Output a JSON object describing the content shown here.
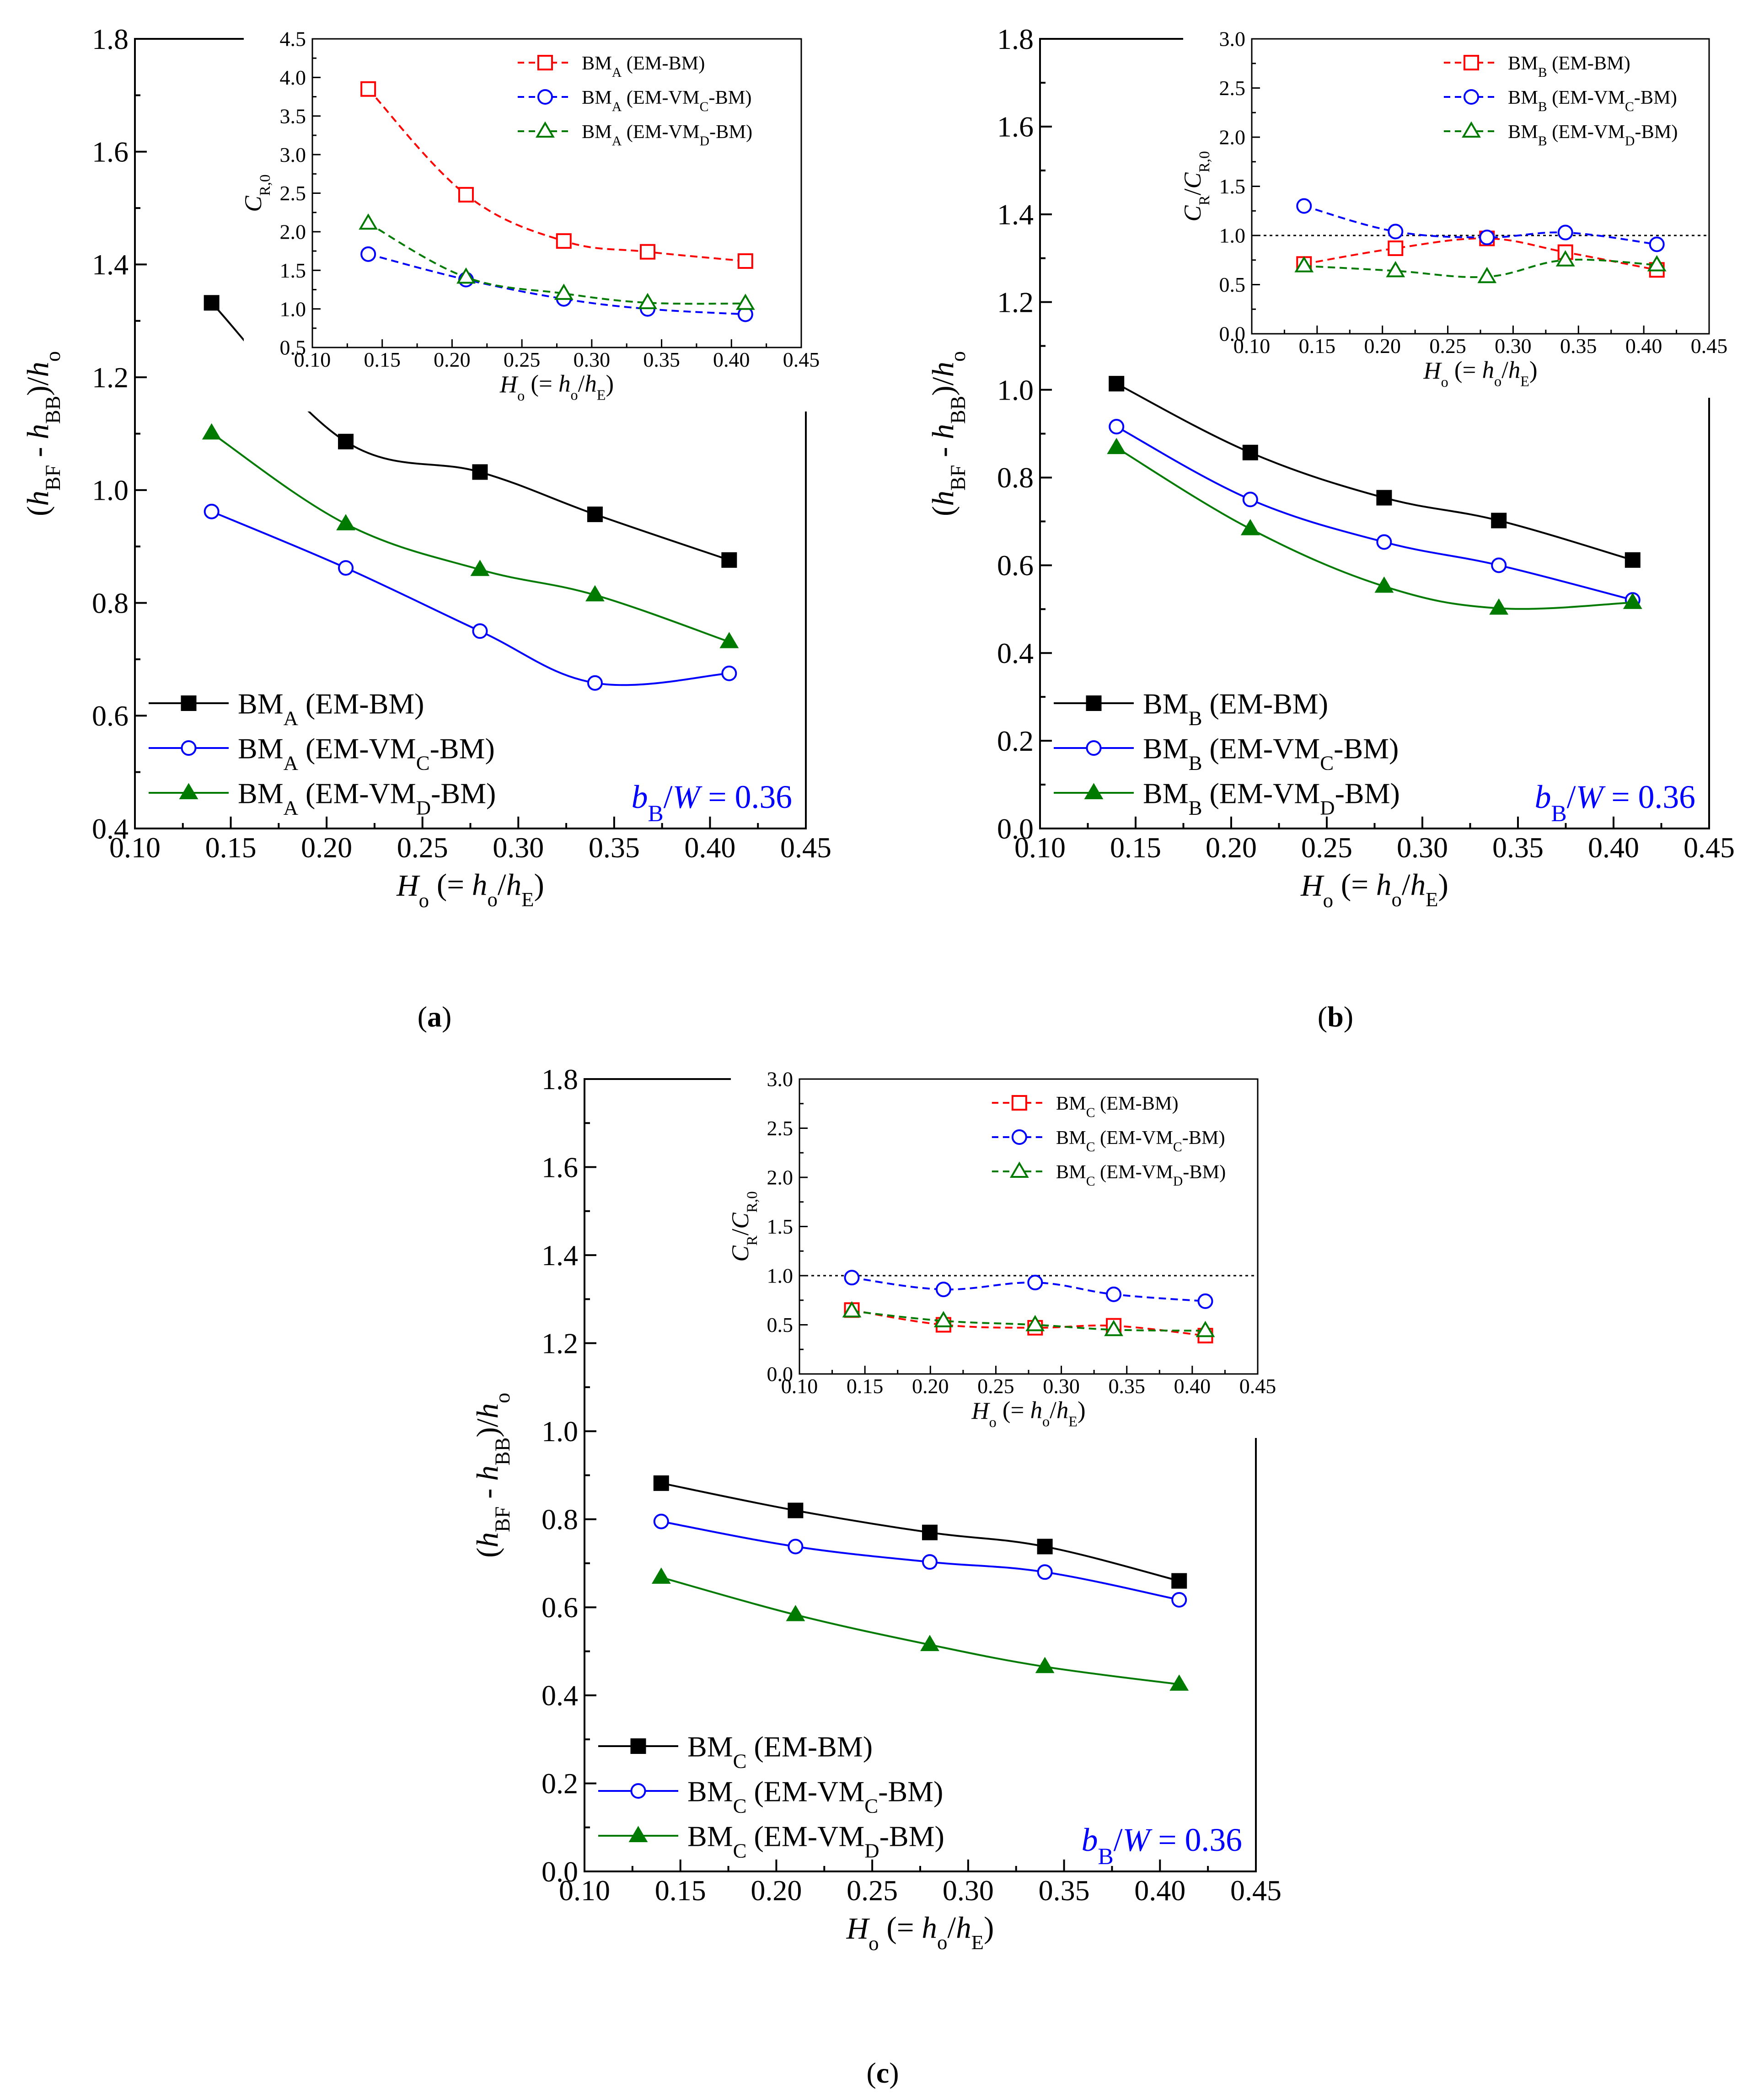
{
  "figure": {
    "panel_labels": [
      "a",
      "b",
      "c"
    ],
    "colors": {
      "black": "#000000",
      "blue": "#0000ff",
      "green": "#007a00",
      "red": "#ff0000",
      "annotation": "#0000ff"
    }
  },
  "chart_data": [
    {
      "id": "a-main",
      "type": "line",
      "panel": "a",
      "xlabel": {
        "main": "H",
        "sub": "o",
        "rest": " (= h",
        "sub2": "o",
        "rest2": "/h",
        "sub3": "E",
        "end": ")"
      },
      "ylabel": {
        "a": "(h",
        "s1": "BF",
        "b": " - h",
        "s2": "BB",
        "c": ")/h",
        "s3": "o"
      },
      "xlim": [
        0.1,
        0.45
      ],
      "ylim": [
        0.4,
        1.8
      ],
      "xticks": [
        "0.10",
        "0.15",
        "0.20",
        "0.25",
        "0.30",
        "0.35",
        "0.40",
        "0.45"
      ],
      "yticks": [
        "0.4",
        "0.6",
        "0.8",
        "1.0",
        "1.2",
        "1.4",
        "1.6",
        "1.8"
      ],
      "x": [
        0.14,
        0.21,
        0.28,
        0.34,
        0.41
      ],
      "series": [
        {
          "name": "BM_A (EM-BM)",
          "base": "BM",
          "sub": "A",
          "tail": " (EM-BM)",
          "tailsub": "",
          "tailend": "",
          "values": [
            1.332,
            1.086,
            1.032,
            0.957,
            0.876
          ],
          "color": "#000000",
          "marker": "square-filled",
          "line": "solid"
        },
        {
          "name": "BM_A (EM-VM_C-BM)",
          "base": "BM",
          "sub": "A",
          "tail": " (EM-VM",
          "tailsub": "C",
          "tailend": "-BM)",
          "values": [
            0.962,
            0.862,
            0.75,
            0.658,
            0.675
          ],
          "color": "#0000ff",
          "marker": "circle-open",
          "line": "solid"
        },
        {
          "name": "BM_A (EM-VM_D-BM)",
          "base": "BM",
          "sub": "A",
          "tail": " (EM-VM",
          "tailsub": "D",
          "tailend": "-BM)",
          "values": [
            1.101,
            0.94,
            0.859,
            0.814,
            0.731
          ],
          "color": "#007a00",
          "marker": "triangle-filled",
          "line": "solid"
        }
      ],
      "annotation": {
        "a": "b",
        "s": "B",
        "b": "/W = 0.36"
      },
      "legend": "bottom-left"
    },
    {
      "id": "a-inset",
      "type": "line",
      "panel": "a",
      "xlabel": {
        "main": "H",
        "sub": "o",
        "rest": " (= h",
        "sub2": "o",
        "rest2": "/h",
        "sub3": "E",
        "end": ")"
      },
      "ylabel": {
        "a": "C",
        "s1": "R,0"
      },
      "xlim": [
        0.1,
        0.45
      ],
      "ylim": [
        0.5,
        4.5
      ],
      "xticks": [
        "0.10",
        "0.15",
        "0.20",
        "0.25",
        "0.30",
        "0.35",
        "0.40",
        "0.45"
      ],
      "yticks": [
        "0.5",
        "1.0",
        "1.5",
        "2.0",
        "2.5",
        "3.0",
        "3.5",
        "4.0",
        "4.5"
      ],
      "x": [
        0.14,
        0.21,
        0.28,
        0.34,
        0.41
      ],
      "series": [
        {
          "name": "BM_A (EM-BM)",
          "base": "BM",
          "sub": "A",
          "tail": " (EM-BM)",
          "tailsub": "",
          "tailend": "",
          "values": [
            3.85,
            2.48,
            1.88,
            1.74,
            1.62
          ],
          "color": "#ff0000",
          "marker": "square-open",
          "line": "dashed"
        },
        {
          "name": "BM_A (EM-VM_C-BM)",
          "base": "BM",
          "sub": "A",
          "tail": " (EM-VM",
          "tailsub": "C",
          "tailend": "-BM)",
          "values": [
            1.71,
            1.38,
            1.13,
            1.0,
            0.93
          ],
          "color": "#0000ff",
          "marker": "circle-open",
          "line": "dashed"
        },
        {
          "name": "BM_A (EM-VM_D-BM)",
          "base": "BM",
          "sub": "A",
          "tail": " (EM-VM",
          "tailsub": "D",
          "tailend": "-BM)",
          "values": [
            2.11,
            1.41,
            1.2,
            1.08,
            1.07
          ],
          "color": "#007a00",
          "marker": "triangle-open",
          "line": "dashed"
        }
      ],
      "legend": "top-right"
    },
    {
      "id": "b-main",
      "type": "line",
      "panel": "b",
      "xlabel": {
        "main": "H",
        "sub": "o",
        "rest": " (= h",
        "sub2": "o",
        "rest2": "/h",
        "sub3": "E",
        "end": ")"
      },
      "ylabel": {
        "a": "(h",
        "s1": "BF",
        "b": " - h",
        "s2": "BB",
        "c": ")/h",
        "s3": "o"
      },
      "xlim": [
        0.1,
        0.45
      ],
      "ylim": [
        0.0,
        1.8
      ],
      "xticks": [
        "0.10",
        "0.15",
        "0.20",
        "0.25",
        "0.30",
        "0.35",
        "0.40",
        "0.45"
      ],
      "yticks": [
        "0.0",
        "0.2",
        "0.4",
        "0.6",
        "0.8",
        "1.0",
        "1.2",
        "1.4",
        "1.6",
        "1.8"
      ],
      "x": [
        0.14,
        0.21,
        0.28,
        0.34,
        0.41
      ],
      "series": [
        {
          "name": "BM_B (EM-BM)",
          "base": "BM",
          "sub": "B",
          "tail": " (EM-BM)",
          "tailsub": "",
          "tailend": "",
          "values": [
            1.014,
            0.857,
            0.754,
            0.702,
            0.612
          ],
          "color": "#000000",
          "marker": "square-filled",
          "line": "solid"
        },
        {
          "name": "BM_B (EM-VM_C-BM)",
          "base": "BM",
          "sub": "B",
          "tail": " (EM-VM",
          "tailsub": "C",
          "tailend": "-BM)",
          "values": [
            0.916,
            0.75,
            0.653,
            0.6,
            0.521
          ],
          "color": "#0000ff",
          "marker": "circle-open",
          "line": "solid"
        },
        {
          "name": "BM_B (EM-VM_D-BM)",
          "base": "BM",
          "sub": "B",
          "tail": " (EM-VM",
          "tailsub": "D",
          "tailend": "-BM)",
          "values": [
            0.868,
            0.683,
            0.552,
            0.502,
            0.515
          ],
          "color": "#007a00",
          "marker": "triangle-filled",
          "line": "solid"
        }
      ],
      "annotation": {
        "a": "b",
        "s": "B",
        "b": "/W = 0.36"
      },
      "legend": "bottom-left"
    },
    {
      "id": "b-inset",
      "type": "line",
      "panel": "b",
      "xlabel": {
        "main": "H",
        "sub": "o",
        "rest": " (= h",
        "sub2": "o",
        "rest2": "/h",
        "sub3": "E",
        "end": ")"
      },
      "ylabel": {
        "a": "C",
        "s1": "R",
        "b": "/C",
        "s2": "R,0"
      },
      "xlim": [
        0.1,
        0.45
      ],
      "ylim": [
        0.0,
        3.0
      ],
      "xticks": [
        "0.10",
        "0.15",
        "0.20",
        "0.25",
        "0.30",
        "0.35",
        "0.40",
        "0.45"
      ],
      "yticks": [
        "0.0",
        "0.5",
        "1.0",
        "1.5",
        "2.0",
        "2.5",
        "3.0"
      ],
      "reference_line": 1.0,
      "x": [
        0.14,
        0.21,
        0.28,
        0.34,
        0.41
      ],
      "series": [
        {
          "name": "BM_B (EM-BM)",
          "base": "BM",
          "sub": "B",
          "tail": " (EM-BM)",
          "tailsub": "",
          "tailend": "",
          "values": [
            0.71,
            0.87,
            0.97,
            0.83,
            0.65
          ],
          "color": "#ff0000",
          "marker": "square-open",
          "line": "dashed"
        },
        {
          "name": "BM_B (EM-VM_C-BM)",
          "base": "BM",
          "sub": "B",
          "tail": " (EM-VM",
          "tailsub": "C",
          "tailend": "-BM)",
          "values": [
            1.3,
            1.04,
            0.98,
            1.03,
            0.91
          ],
          "color": "#0000ff",
          "marker": "circle-open",
          "line": "dashed"
        },
        {
          "name": "BM_B (EM-VM_D-BM)",
          "base": "BM",
          "sub": "B",
          "tail": " (EM-VM",
          "tailsub": "D",
          "tailend": "-BM)",
          "values": [
            0.69,
            0.64,
            0.58,
            0.75,
            0.7
          ],
          "color": "#007a00",
          "marker": "triangle-open",
          "line": "dashed"
        }
      ],
      "legend": "top-right"
    },
    {
      "id": "c-main",
      "type": "line",
      "panel": "c",
      "xlabel": {
        "main": "H",
        "sub": "o",
        "rest": " (= h",
        "sub2": "o",
        "rest2": "/h",
        "sub3": "E",
        "end": ")"
      },
      "ylabel": {
        "a": "(h",
        "s1": "BF",
        "b": " - h",
        "s2": "BB",
        "c": ")/h",
        "s3": "o"
      },
      "xlim": [
        0.1,
        0.45
      ],
      "ylim": [
        0.0,
        1.8
      ],
      "xticks": [
        "0.10",
        "0.15",
        "0.20",
        "0.25",
        "0.30",
        "0.35",
        "0.40",
        "0.45"
      ],
      "yticks": [
        "0.0",
        "0.2",
        "0.4",
        "0.6",
        "0.8",
        "1.0",
        "1.2",
        "1.4",
        "1.6",
        "1.8"
      ],
      "x": [
        0.14,
        0.21,
        0.28,
        0.34,
        0.41
      ],
      "series": [
        {
          "name": "BM_C (EM-BM)",
          "base": "BM",
          "sub": "C",
          "tail": " (EM-BM)",
          "tailsub": "",
          "tailend": "",
          "values": [
            0.882,
            0.82,
            0.77,
            0.738,
            0.66
          ],
          "color": "#000000",
          "marker": "square-filled",
          "line": "solid"
        },
        {
          "name": "BM_C (EM-VM_C-BM)",
          "base": "BM",
          "sub": "C",
          "tail": " (EM-VM",
          "tailsub": "C",
          "tailend": "-BM)",
          "values": [
            0.795,
            0.738,
            0.703,
            0.68,
            0.617
          ],
          "color": "#0000ff",
          "marker": "circle-open",
          "line": "solid"
        },
        {
          "name": "BM_C (EM-VM_D-BM)",
          "base": "BM",
          "sub": "C",
          "tail": " (EM-VM",
          "tailsub": "D",
          "tailend": "-BM)",
          "values": [
            0.668,
            0.583,
            0.515,
            0.465,
            0.425
          ],
          "color": "#007a00",
          "marker": "triangle-filled",
          "line": "solid"
        }
      ],
      "annotation": {
        "a": "b",
        "s": "B",
        "b": "/W = 0.36"
      },
      "legend": "bottom-left"
    },
    {
      "id": "c-inset",
      "type": "line",
      "panel": "c",
      "xlabel": {
        "main": "H",
        "sub": "o",
        "rest": " (= h",
        "sub2": "o",
        "rest2": "/h",
        "sub3": "E",
        "end": ")"
      },
      "ylabel": {
        "a": "C",
        "s1": "R",
        "b": "/C",
        "s2": "R,0"
      },
      "xlim": [
        0.1,
        0.45
      ],
      "ylim": [
        0.0,
        3.0
      ],
      "xticks": [
        "0.10",
        "0.15",
        "0.20",
        "0.25",
        "0.30",
        "0.35",
        "0.40",
        "0.45"
      ],
      "yticks": [
        "0.0",
        "0.5",
        "1.0",
        "1.5",
        "2.0",
        "2.5",
        "3.0"
      ],
      "reference_line": 1.0,
      "x": [
        0.14,
        0.21,
        0.28,
        0.34,
        0.41
      ],
      "series": [
        {
          "name": "BM_C (EM-BM)",
          "base": "BM",
          "sub": "C",
          "tail": " (EM-BM)",
          "tailsub": "",
          "tailend": "",
          "values": [
            0.65,
            0.5,
            0.47,
            0.49,
            0.39
          ],
          "color": "#ff0000",
          "marker": "square-open",
          "line": "dashed"
        },
        {
          "name": "BM_C (EM-VM_C-BM)",
          "base": "BM",
          "sub": "C",
          "tail": " (EM-VM",
          "tailsub": "C",
          "tailend": "-BM)",
          "values": [
            0.98,
            0.86,
            0.93,
            0.81,
            0.74
          ],
          "color": "#0000ff",
          "marker": "circle-open",
          "line": "dashed"
        },
        {
          "name": "BM_C (EM-VM_D-BM)",
          "base": "BM",
          "sub": "C",
          "tail": " (EM-VM",
          "tailsub": "D",
          "tailend": "-BM)",
          "values": [
            0.64,
            0.54,
            0.5,
            0.45,
            0.44
          ],
          "color": "#007a00",
          "marker": "triangle-open",
          "line": "dashed"
        }
      ],
      "legend": "top-right"
    }
  ]
}
